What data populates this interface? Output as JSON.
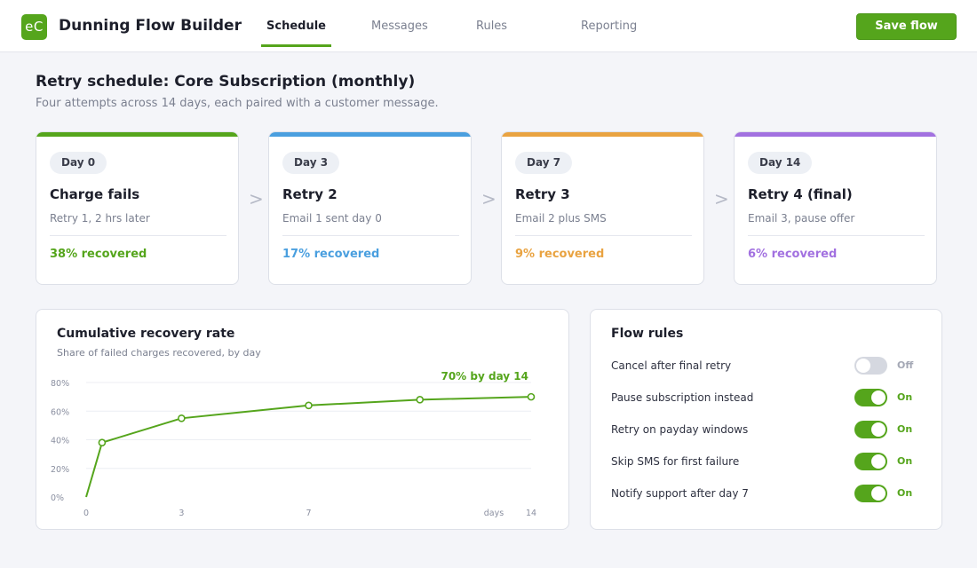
{
  "app": {
    "logo_text": "eC",
    "title": "Dunning Flow Builder"
  },
  "tabs": [
    {
      "label": "Schedule",
      "active": true
    },
    {
      "label": "Messages",
      "active": false
    },
    {
      "label": "Rules",
      "active": false
    },
    {
      "label": "Reporting",
      "active": false
    }
  ],
  "toolbar": {
    "save_label": "Save flow"
  },
  "page": {
    "title": "Retry schedule: Core Subscription (monthly)",
    "subtitle": "Four attempts across 14 days, each paired with a customer message."
  },
  "steps": [
    {
      "day": "Day 0",
      "title": "Charge fails",
      "detail": "Retry 1, 2 hrs later",
      "metric": "38% recovered",
      "color": "#55a51c"
    },
    {
      "day": "Day 3",
      "title": "Retry 2",
      "detail": "Email 1 sent day 0",
      "metric": "17% recovered",
      "color": "#4a9fdf"
    },
    {
      "day": "Day 7",
      "title": "Retry 3",
      "detail": "Email 2 plus SMS",
      "metric": "9% recovered",
      "color": "#e9a341"
    },
    {
      "day": "Day 14",
      "title": "Retry 4 (final)",
      "detail": "Email 3, pause offer",
      "metric": "6% recovered",
      "color": "#a271e0"
    }
  ],
  "step_arrow": ">",
  "chart_panel": {
    "title": "Cumulative recovery rate",
    "subtitle": "Share of failed charges recovered, by day"
  },
  "chart_data": {
    "type": "line",
    "title": "Cumulative recovery rate",
    "subtitle": "Share of failed charges recovered, by day",
    "xlabel": "days",
    "ylabel": "",
    "x_ticks": [
      "0",
      "3",
      "7",
      "14"
    ],
    "y_ticks": [
      "0%",
      "20%",
      "40%",
      "60%",
      "80%"
    ],
    "xlim": [
      0,
      14
    ],
    "ylim": [
      0,
      80
    ],
    "grid": true,
    "annotation": "70% by day 14",
    "color": "#55a51c",
    "series": [
      {
        "x": [
          0,
          0.5,
          3,
          7,
          10.5,
          14
        ],
        "y": [
          0,
          38,
          55,
          64,
          68,
          70
        ],
        "markers": [
          false,
          true,
          true,
          true,
          true,
          true
        ]
      }
    ]
  },
  "rules_panel": {
    "title": "Flow rules",
    "rules": [
      {
        "label": "Cancel after final retry",
        "on": false,
        "state": "Off"
      },
      {
        "label": "Pause subscription instead",
        "on": true,
        "state": "On"
      },
      {
        "label": "Retry on payday windows",
        "on": true,
        "state": "On"
      },
      {
        "label": "Skip SMS for first failure",
        "on": true,
        "state": "On"
      },
      {
        "label": "Notify support after day 7",
        "on": true,
        "state": "On"
      }
    ]
  },
  "colors": {
    "accent": "#55a51c",
    "grid": "#eceef3",
    "muted": "#7b8090"
  }
}
